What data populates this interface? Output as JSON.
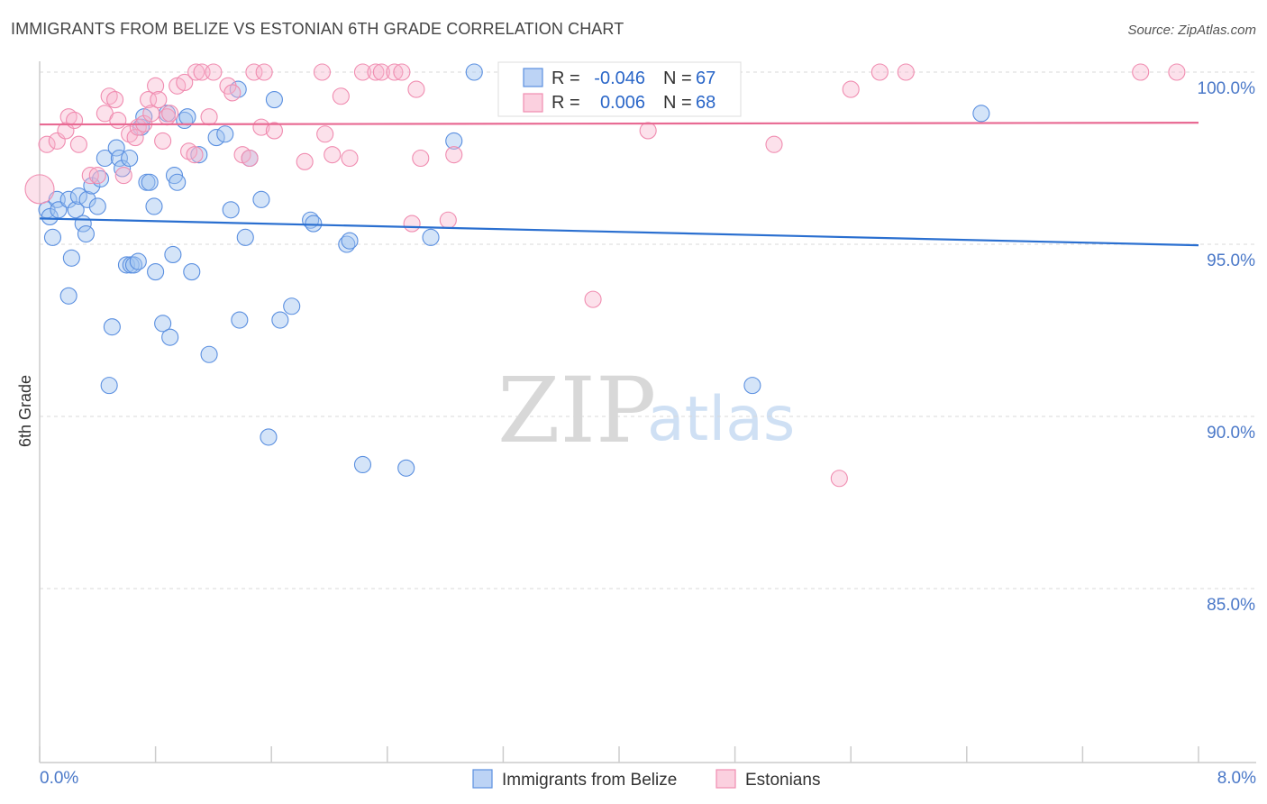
{
  "title": "IMMIGRANTS FROM BELIZE VS ESTONIAN 6TH GRADE CORRELATION CHART",
  "source": "Source: ZipAtlas.com",
  "watermark": {
    "part1": "ZIP",
    "part2": "atlas"
  },
  "legend": {
    "rows": [
      {
        "r_label": "R =",
        "r_value": "-0.046",
        "n_label": "N =",
        "n_value": "67",
        "color": "#5a8fe0"
      },
      {
        "r_label": "R =",
        "r_value": "0.006",
        "n_label": "N =",
        "n_value": "68",
        "color": "#f08cb0"
      }
    ]
  },
  "chart_data": {
    "type": "scatter",
    "title": "IMMIGRANTS FROM BELIZE VS ESTONIAN 6TH GRADE CORRELATION CHART",
    "xlabel": "",
    "ylabel": "6th Grade",
    "xlim": [
      0,
      8
    ],
    "ylim": [
      80.5,
      100.8
    ],
    "x_tick_labels": [
      "0.0%",
      "8.0%"
    ],
    "y_ticks": [
      {
        "value": 100,
        "label": "100.0%"
      },
      {
        "value": 95,
        "label": "95.0%"
      },
      {
        "value": 90,
        "label": "90.0%"
      },
      {
        "value": 85,
        "label": "85.0%"
      }
    ],
    "grid": "horizontal dashed",
    "legend_position": "bottom-center",
    "series": [
      {
        "name": "Immigrants from Belize",
        "color": "#5a8fe0",
        "trend": {
          "x": [
            0,
            8
          ],
          "y": [
            95.75,
            94.97
          ]
        },
        "points": [
          [
            0.05,
            96.0
          ],
          [
            0.07,
            95.8
          ],
          [
            0.09,
            95.2
          ],
          [
            0.12,
            96.3
          ],
          [
            0.13,
            96.0
          ],
          [
            0.2,
            96.3
          ],
          [
            0.22,
            94.6
          ],
          [
            0.2,
            93.5
          ],
          [
            0.25,
            96.0
          ],
          [
            0.27,
            96.4
          ],
          [
            0.3,
            95.6
          ],
          [
            0.32,
            95.3
          ],
          [
            0.33,
            96.3
          ],
          [
            0.36,
            96.7
          ],
          [
            0.4,
            96.1
          ],
          [
            0.42,
            96.9
          ],
          [
            0.45,
            97.5
          ],
          [
            0.48,
            90.9
          ],
          [
            0.5,
            92.6
          ],
          [
            0.53,
            97.8
          ],
          [
            0.55,
            97.5
          ],
          [
            0.57,
            97.2
          ],
          [
            0.6,
            94.4
          ],
          [
            0.62,
            97.5
          ],
          [
            0.63,
            94.4
          ],
          [
            0.65,
            94.4
          ],
          [
            0.68,
            94.5
          ],
          [
            0.7,
            98.4
          ],
          [
            0.72,
            98.7
          ],
          [
            0.74,
            96.8
          ],
          [
            0.76,
            96.8
          ],
          [
            0.79,
            96.1
          ],
          [
            0.8,
            94.2
          ],
          [
            0.85,
            92.7
          ],
          [
            0.88,
            98.8
          ],
          [
            0.9,
            92.3
          ],
          [
            0.92,
            94.7
          ],
          [
            0.93,
            97.0
          ],
          [
            0.95,
            96.8
          ],
          [
            1.0,
            98.6
          ],
          [
            1.02,
            98.7
          ],
          [
            1.05,
            94.2
          ],
          [
            1.1,
            97.6
          ],
          [
            1.17,
            91.8
          ],
          [
            1.22,
            98.1
          ],
          [
            1.28,
            98.2
          ],
          [
            1.32,
            96.0
          ],
          [
            1.37,
            99.5
          ],
          [
            1.38,
            92.8
          ],
          [
            1.42,
            95.2
          ],
          [
            1.45,
            97.5
          ],
          [
            1.53,
            96.3
          ],
          [
            1.58,
            89.4
          ],
          [
            1.62,
            99.2
          ],
          [
            1.66,
            92.8
          ],
          [
            1.74,
            93.2
          ],
          [
            1.87,
            95.7
          ],
          [
            1.89,
            95.6
          ],
          [
            2.12,
            95.0
          ],
          [
            2.14,
            95.1
          ],
          [
            2.23,
            88.6
          ],
          [
            2.53,
            88.5
          ],
          [
            2.7,
            95.2
          ],
          [
            2.86,
            98.0
          ],
          [
            3.0,
            100.0
          ],
          [
            4.92,
            90.9
          ],
          [
            6.5,
            98.8
          ]
        ]
      },
      {
        "name": "Estonians",
        "color": "#f08cb0",
        "trend": {
          "x": [
            0,
            8
          ],
          "y": [
            98.48,
            98.53
          ]
        },
        "points": [
          [
            0.0,
            96.6
          ],
          [
            0.05,
            97.9
          ],
          [
            0.12,
            98.0
          ],
          [
            0.18,
            98.3
          ],
          [
            0.2,
            98.7
          ],
          [
            0.24,
            98.6
          ],
          [
            0.27,
            97.9
          ],
          [
            0.35,
            97.0
          ],
          [
            0.4,
            97.0
          ],
          [
            0.45,
            98.8
          ],
          [
            0.48,
            99.3
          ],
          [
            0.52,
            99.2
          ],
          [
            0.54,
            98.6
          ],
          [
            0.58,
            97.0
          ],
          [
            0.62,
            98.2
          ],
          [
            0.66,
            98.1
          ],
          [
            0.68,
            98.4
          ],
          [
            0.72,
            98.5
          ],
          [
            0.75,
            99.2
          ],
          [
            0.77,
            98.8
          ],
          [
            0.8,
            99.6
          ],
          [
            0.82,
            99.2
          ],
          [
            0.85,
            98.0
          ],
          [
            0.88,
            98.7
          ],
          [
            0.9,
            98.8
          ],
          [
            0.95,
            99.6
          ],
          [
            1.0,
            99.7
          ],
          [
            1.03,
            97.7
          ],
          [
            1.07,
            97.6
          ],
          [
            1.08,
            100.0
          ],
          [
            1.12,
            100.0
          ],
          [
            1.17,
            98.7
          ],
          [
            1.2,
            100.0
          ],
          [
            1.3,
            99.6
          ],
          [
            1.33,
            99.4
          ],
          [
            1.4,
            97.6
          ],
          [
            1.45,
            97.5
          ],
          [
            1.48,
            100.0
          ],
          [
            1.53,
            98.4
          ],
          [
            1.55,
            100.0
          ],
          [
            1.62,
            98.3
          ],
          [
            1.83,
            97.4
          ],
          [
            1.95,
            100.0
          ],
          [
            1.97,
            98.2
          ],
          [
            2.02,
            97.6
          ],
          [
            2.08,
            99.3
          ],
          [
            2.14,
            97.5
          ],
          [
            2.23,
            100.0
          ],
          [
            2.32,
            100.0
          ],
          [
            2.36,
            100.0
          ],
          [
            2.45,
            100.0
          ],
          [
            2.5,
            100.0
          ],
          [
            2.57,
            95.6
          ],
          [
            2.6,
            99.5
          ],
          [
            2.63,
            97.5
          ],
          [
            2.82,
            95.7
          ],
          [
            2.86,
            97.6
          ],
          [
            3.55,
            100.0
          ],
          [
            3.82,
            93.4
          ],
          [
            4.2,
            98.3
          ],
          [
            4.65,
            100.0
          ],
          [
            5.07,
            97.9
          ],
          [
            5.52,
            88.2
          ],
          [
            5.6,
            99.5
          ],
          [
            5.8,
            100.0
          ],
          [
            5.98,
            100.0
          ],
          [
            7.6,
            100.0
          ],
          [
            7.85,
            100.0
          ]
        ]
      }
    ]
  }
}
